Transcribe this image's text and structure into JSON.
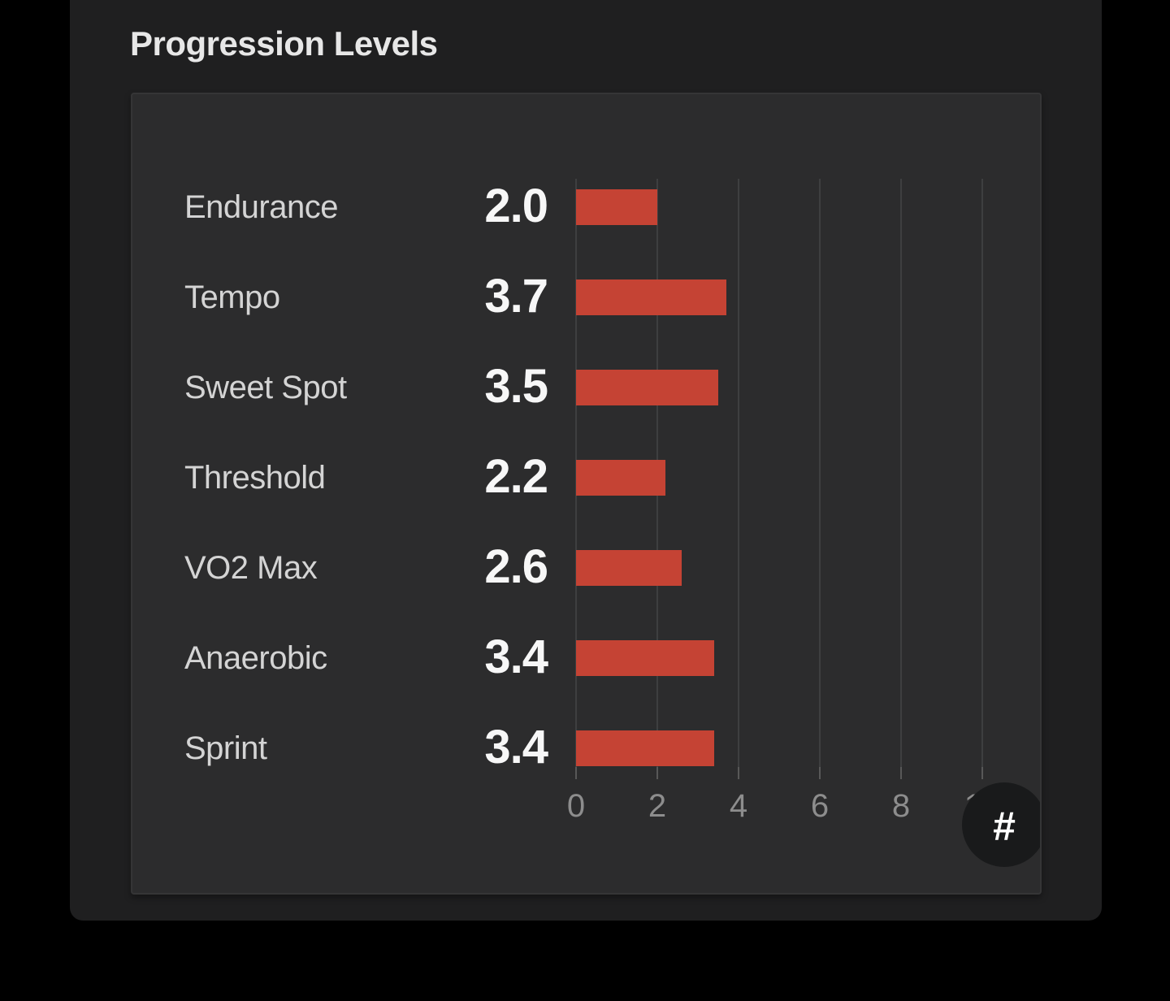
{
  "page": {
    "title": "Progression Levels",
    "background_color": "#000000",
    "panel_color": "#1f1f20",
    "card_color": "#2c2c2d"
  },
  "badge": {
    "label": "#"
  },
  "chart_data": {
    "type": "bar",
    "orientation": "horizontal",
    "title": "Progression Levels",
    "categories": [
      "Endurance",
      "Tempo",
      "Sweet Spot",
      "Threshold",
      "VO2 Max",
      "Anaerobic",
      "Sprint"
    ],
    "values": [
      2.0,
      3.7,
      3.5,
      2.2,
      2.6,
      3.4,
      3.4
    ],
    "value_labels": [
      "2.0",
      "3.7",
      "3.5",
      "2.2",
      "2.6",
      "3.4",
      "3.4"
    ],
    "xlim": [
      0,
      10
    ],
    "x_ticks": [
      0,
      2,
      4,
      6,
      8,
      10
    ],
    "x_tick_labels": [
      "0",
      "2",
      "4",
      "6",
      "8",
      "10"
    ],
    "bar_color": "#c54334",
    "gridline_color": "#3e3f40",
    "grid": true,
    "legend": false
  }
}
